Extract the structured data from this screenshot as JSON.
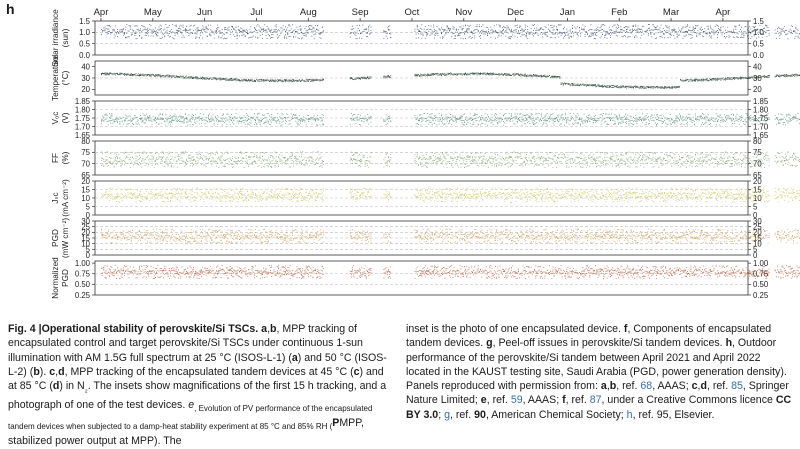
{
  "figure": {
    "panel_label": "h",
    "months": [
      "Apr",
      "May",
      "Jun",
      "Jul",
      "Aug",
      "Sep",
      "Oct",
      "Nov",
      "Dec",
      "Jan",
      "Feb",
      "Mar",
      "Apr"
    ]
  },
  "chart_data": {
    "type": "scatter",
    "x_axis": "month (April 2021 to April 2022)",
    "series": [
      {
        "name": "Solar irradiance",
        "ylabel_lines": [
          "Solar irradiance",
          "(sun)"
        ],
        "ticks": [
          "0.0",
          "0.5",
          "1.0",
          "1.5"
        ],
        "ylim": [
          0,
          1.5
        ],
        "typical": 1.05,
        "spread": 0.45,
        "color": "#23395d"
      },
      {
        "name": "Temperature",
        "ylabel_lines": [
          "Temperature",
          "(°C)"
        ],
        "ticks": [
          "20",
          "30",
          "40"
        ],
        "ylim": [
          15,
          45
        ],
        "typical": 31,
        "spread": 4,
        "color": "#1f3d2c"
      },
      {
        "name": "Voc",
        "ylabel_lines": [
          "Vₒᴄ",
          "(V)"
        ],
        "ticks": [
          "1.65",
          "1.70",
          "1.75",
          "1.80",
          "1.85"
        ],
        "ylim": [
          1.65,
          1.85
        ],
        "typical": 1.745,
        "spread": 0.05,
        "color": "#3f7f6e"
      },
      {
        "name": "FF",
        "ylabel_lines": [
          "FF",
          "(%)"
        ],
        "ticks": [
          "65",
          "70",
          "75",
          "80"
        ],
        "ylim": [
          65,
          80
        ],
        "typical": 72,
        "spread": 5,
        "color": "#6f9a55"
      },
      {
        "name": "Jsc",
        "ylabel_lines": [
          "Jₛᴄ",
          "(mA cm⁻²)"
        ],
        "ticks": [
          "0",
          "5",
          "10",
          "15",
          "20"
        ],
        "ylim": [
          0,
          20
        ],
        "typical": 12,
        "spread": 6,
        "color": "#c9bf3e"
      },
      {
        "name": "PGD",
        "ylabel_lines": [
          "PGD",
          "(mW cm⁻²)"
        ],
        "ticks": [
          "0",
          "5",
          "10",
          "15",
          "20",
          "25",
          "30"
        ],
        "ylim": [
          0,
          30
        ],
        "typical": 17,
        "spread": 9,
        "color": "#cf8f3a"
      },
      {
        "name": "Normalized PGD",
        "ylabel_lines": [
          "Normalized",
          "PGD"
        ],
        "ticks": [
          "0.25",
          "0.50",
          "0.75",
          "1.00"
        ],
        "ylim": [
          0.25,
          1.05
        ],
        "typical": 0.8,
        "spread": 0.22,
        "color": "#b84a22"
      }
    ],
    "outdoor_period": "April 2021 to April 2022",
    "location": "KAUST testing site, Saudi Arabia"
  },
  "caption": {
    "fig_label": "Fig. 4 |",
    "fig_title": "Operational stability of perovskite/Si TSCs.",
    "left_parts": [
      " ",
      "a",
      ",",
      "b",
      ", MPP tracking of encapsulated control and target perovskite/Si TSCs under continuous 1-sun illumination with AM 1.5G full spectrum at 25 °C (ISOS-L-1) (",
      "a",
      ") and 50 °C (ISOS-L-2) (",
      "b",
      "). ",
      "c",
      ",",
      "d",
      ", MPP tracking of the encapsulated tandem devices at 45 °C (",
      "c",
      ") and at 85 °C (",
      "d",
      ") in N",
      "₂",
      ". The insets show magnifications of the first 15 h tracking, and a photograph of one of the test devices. ",
      "e",
      ", Evolution of PV performance of the encapsulated tandem devices when subjected to a damp-heat stability experiment at 85 °C and 85% RH (",
      "P",
      "MPP",
      ", stabilized power output at MPP). The"
    ],
    "right_parts": [
      "inset is the photo of one encapsulated device. ",
      "f",
      ", Components of encapsulated tandem devices. ",
      "g",
      ", Peel-off issues in perovskite/Si tandem devices. ",
      "h",
      ", Outdoor performance of the perovskite/Si tandem between April 2021 and April 2022 located in the KAUST testing site, Saudi Arabia (PGD, power generation density). Panels reproduced with permission from: ",
      "a",
      ",",
      "b",
      ", ref. ",
      "68",
      ", AAAS; ",
      "c",
      ",",
      "d",
      ", ref. ",
      "85",
      ", Springer Nature Limited; ",
      "e",
      ", ref. ",
      "59",
      ", AAAS; ",
      "f",
      ", ref. ",
      "87",
      ", under a Creative Commons licence ",
      "CC BY 3.0",
      "; ",
      "g",
      ", ref. ",
      "90",
      ", American Chemical Society; ",
      "h",
      ", ref. ",
      "95",
      ", Elsevier."
    ]
  }
}
